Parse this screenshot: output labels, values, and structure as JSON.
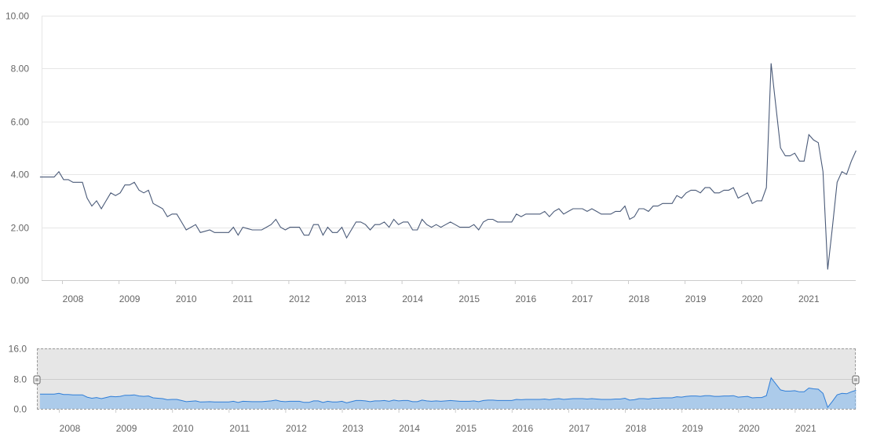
{
  "chart_data": {
    "type": "line",
    "title": "",
    "xlabel": "",
    "ylabel": "",
    "ylim": [
      0,
      10
    ],
    "grid": true,
    "y_ticks": [
      "0.00",
      "2.00",
      "4.00",
      "6.00",
      "8.00",
      "10.00"
    ],
    "x_ticks": [
      "2008",
      "2009",
      "2010",
      "2011",
      "2012",
      "2013",
      "2014",
      "2015",
      "2016",
      "2017",
      "2018",
      "2019",
      "2020",
      "2021"
    ],
    "series": [
      {
        "color": "#4a5a78",
        "x_start": "2007-06",
        "frequency": "monthly",
        "values": [
          3.9,
          3.9,
          3.9,
          3.9,
          4.1,
          3.8,
          3.8,
          3.7,
          3.7,
          3.7,
          3.1,
          2.8,
          3.0,
          2.7,
          3.0,
          3.3,
          3.2,
          3.3,
          3.6,
          3.6,
          3.7,
          3.4,
          3.3,
          3.4,
          2.9,
          2.8,
          2.7,
          2.4,
          2.5,
          2.5,
          2.2,
          1.9,
          2.0,
          2.1,
          1.8,
          1.85,
          1.9,
          1.8,
          1.8,
          1.8,
          1.8,
          2.0,
          1.7,
          2.0,
          1.95,
          1.9,
          1.9,
          1.9,
          2.0,
          2.1,
          2.3,
          2.0,
          1.9,
          2.0,
          2.0,
          2.0,
          1.7,
          1.7,
          2.1,
          2.1,
          1.7,
          2.0,
          1.8,
          1.8,
          2.0,
          1.6,
          1.9,
          2.2,
          2.2,
          2.1,
          1.9,
          2.1,
          2.1,
          2.2,
          2.0,
          2.3,
          2.1,
          2.2,
          2.2,
          1.9,
          1.9,
          2.3,
          2.1,
          2.0,
          2.1,
          2.0,
          2.1,
          2.2,
          2.1,
          2.0,
          2.0,
          2.0,
          2.1,
          1.9,
          2.2,
          2.3,
          2.3,
          2.2,
          2.2,
          2.2,
          2.2,
          2.5,
          2.4,
          2.5,
          2.5,
          2.5,
          2.5,
          2.6,
          2.4,
          2.6,
          2.7,
          2.5,
          2.6,
          2.7,
          2.7,
          2.7,
          2.6,
          2.7,
          2.6,
          2.5,
          2.5,
          2.5,
          2.6,
          2.6,
          2.8,
          2.3,
          2.4,
          2.7,
          2.7,
          2.6,
          2.8,
          2.8,
          2.9,
          2.9,
          2.9,
          3.2,
          3.1,
          3.3,
          3.4,
          3.4,
          3.3,
          3.5,
          3.5,
          3.3,
          3.3,
          3.4,
          3.4,
          3.5,
          3.1,
          3.2,
          3.3,
          2.9,
          3.0,
          3.0,
          3.5,
          8.2,
          6.6,
          5.0,
          4.7,
          4.7,
          4.8,
          4.5,
          4.5,
          5.5,
          5.3,
          5.2,
          4.1,
          0.4,
          2.0,
          3.7,
          4.1,
          4.0,
          4.5,
          4.9
        ]
      }
    ],
    "navigator": {
      "y_ticks": [
        "0.0",
        "8.0",
        "16.0"
      ],
      "ylim": [
        0,
        16
      ],
      "fill_color": "#7cb5ec",
      "line_color": "#2f7ed8"
    }
  }
}
